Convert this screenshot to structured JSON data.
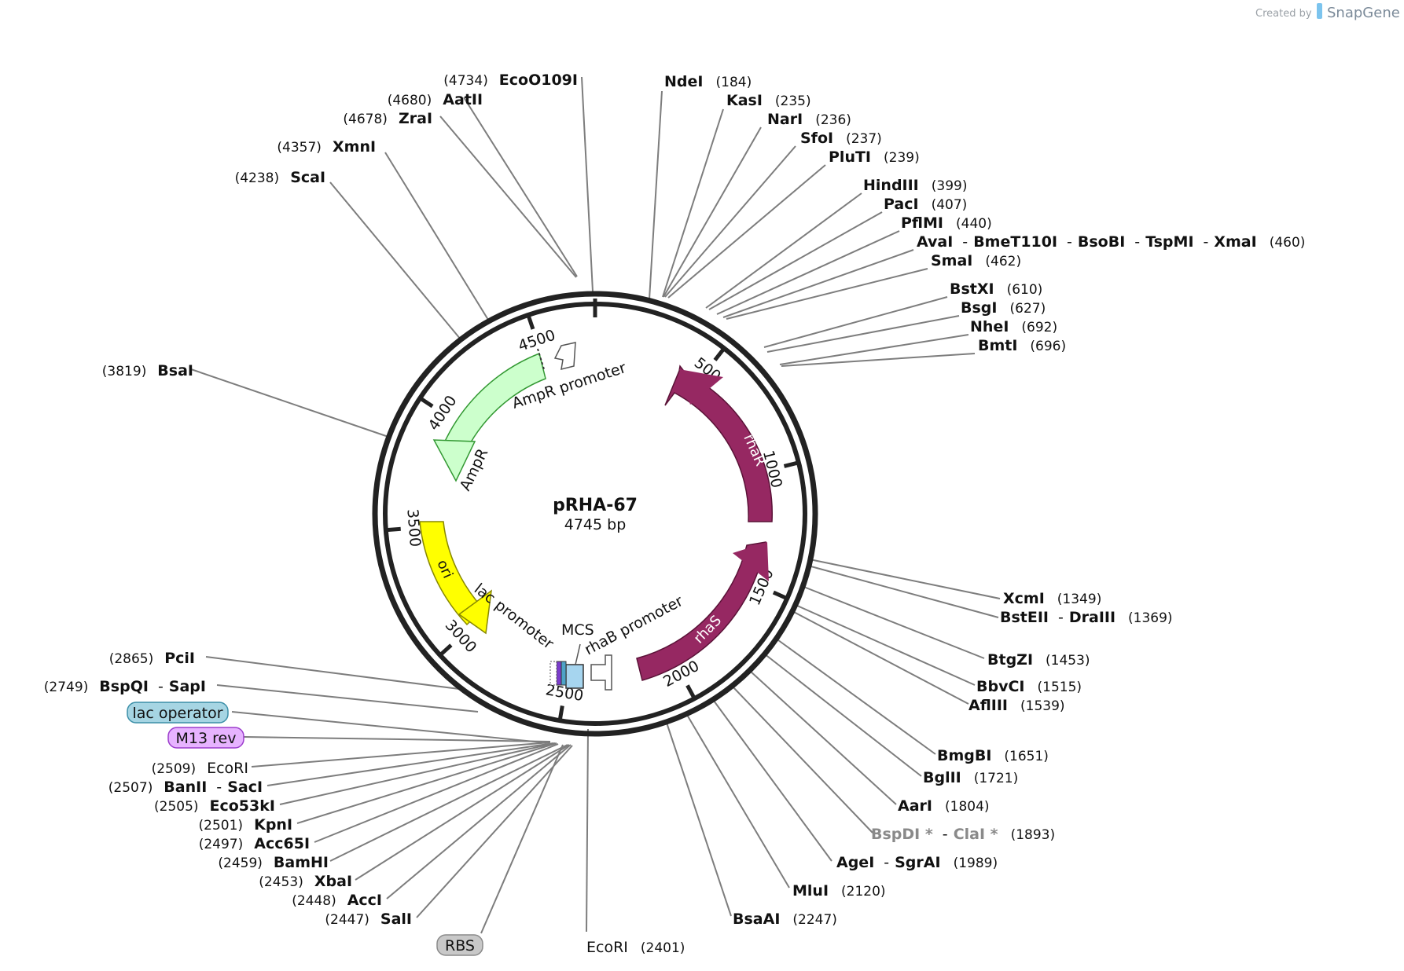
{
  "branding": {
    "created_by": "Created by",
    "app": "SnapGene"
  },
  "plasmid": {
    "name": "pRHA-67",
    "length_label": "4745 bp",
    "length": 4745
  },
  "ticks": [
    {
      "label": "500",
      "bp": 500
    },
    {
      "label": "1000",
      "bp": 1000
    },
    {
      "label": "1500",
      "bp": 1500
    },
    {
      "label": "2000",
      "bp": 2000
    },
    {
      "label": "2500",
      "bp": 2500
    },
    {
      "label": "3000",
      "bp": 3000
    },
    {
      "label": "3500",
      "bp": 3500
    },
    {
      "label": "4000",
      "bp": 4000
    },
    {
      "label": "4500",
      "bp": 4500
    }
  ],
  "features": [
    {
      "name": "rhaR",
      "color": "#962862",
      "direction": "reverse"
    },
    {
      "name": "rhaS",
      "color": "#962862",
      "direction": "reverse"
    },
    {
      "name": "ori",
      "color": "#ffff00",
      "direction": "reverse"
    },
    {
      "name": "AmpR",
      "color": "#ccffcc",
      "direction": "reverse"
    },
    {
      "name": "AmpR promoter",
      "color": "#ffffff",
      "direction": "reverse"
    },
    {
      "name": "rhaB promoter",
      "color": "#ffffff",
      "direction": "forward"
    },
    {
      "name": "lac promoter",
      "color": "#ffffff",
      "direction": "forward"
    },
    {
      "name": "MCS",
      "color": "#ffffff",
      "direction": "none"
    }
  ],
  "tags": [
    {
      "name": "lac operator",
      "fill": "#a6d5e3",
      "stroke": "#3b8fa8"
    },
    {
      "name": "M13 rev",
      "fill": "#e7b3ff",
      "stroke": "#9b3ccc"
    },
    {
      "name": "RBS",
      "fill": "#c8c8c8",
      "stroke": "#8a8a8a"
    }
  ],
  "sites": [
    {
      "parts": [
        {
          "name": "EcoO109I"
        }
      ],
      "pos": "(4734)"
    },
    {
      "parts": [
        {
          "name": "AatII"
        }
      ],
      "pos": "(4680)"
    },
    {
      "parts": [
        {
          "name": "ZraI"
        }
      ],
      "pos": "(4678)"
    },
    {
      "parts": [
        {
          "name": "XmnI"
        }
      ],
      "pos": "(4357)"
    },
    {
      "parts": [
        {
          "name": "ScaI"
        }
      ],
      "pos": "(4238)"
    },
    {
      "parts": [
        {
          "name": "BsaI"
        }
      ],
      "pos": "(3819)"
    },
    {
      "parts": [
        {
          "name": "NdeI"
        }
      ],
      "pos": "(184)"
    },
    {
      "parts": [
        {
          "name": "KasI"
        }
      ],
      "pos": "(235)"
    },
    {
      "parts": [
        {
          "name": "NarI"
        }
      ],
      "pos": "(236)"
    },
    {
      "parts": [
        {
          "name": "SfoI"
        }
      ],
      "pos": "(237)"
    },
    {
      "parts": [
        {
          "name": "PluTI"
        }
      ],
      "pos": "(239)"
    },
    {
      "parts": [
        {
          "name": "HindIII"
        }
      ],
      "pos": "(399)"
    },
    {
      "parts": [
        {
          "name": "PacI"
        }
      ],
      "pos": "(407)"
    },
    {
      "parts": [
        {
          "name": "PflMI"
        }
      ],
      "pos": "(440)"
    },
    {
      "parts": [
        {
          "name": "AvaI"
        },
        {
          "name": "BmeT110I"
        },
        {
          "name": "BsoBI"
        },
        {
          "name": "TspMI"
        },
        {
          "name": "XmaI"
        }
      ],
      "pos": "(460)"
    },
    {
      "parts": [
        {
          "name": "SmaI"
        }
      ],
      "pos": "(462)"
    },
    {
      "parts": [
        {
          "name": "BstXI"
        }
      ],
      "pos": "(610)"
    },
    {
      "parts": [
        {
          "name": "BsgI"
        }
      ],
      "pos": "(627)"
    },
    {
      "parts": [
        {
          "name": "NheI"
        }
      ],
      "pos": "(692)"
    },
    {
      "parts": [
        {
          "name": "BmtI"
        }
      ],
      "pos": "(696)"
    },
    {
      "parts": [
        {
          "name": "XcmI"
        }
      ],
      "pos": "(1349)"
    },
    {
      "parts": [
        {
          "name": "BstEII"
        },
        {
          "name": "DraIII"
        }
      ],
      "pos": "(1369)"
    },
    {
      "parts": [
        {
          "name": "BtgZI"
        }
      ],
      "pos": "(1453)"
    },
    {
      "parts": [
        {
          "name": "BbvCI"
        }
      ],
      "pos": "(1515)"
    },
    {
      "parts": [
        {
          "name": "AflIII"
        }
      ],
      "pos": "(1539)"
    },
    {
      "parts": [
        {
          "name": "BmgBI"
        }
      ],
      "pos": "(1651)"
    },
    {
      "parts": [
        {
          "name": "BglII"
        }
      ],
      "pos": "(1721)"
    },
    {
      "parts": [
        {
          "name": "AarI"
        }
      ],
      "pos": "(1804)"
    },
    {
      "parts": [
        {
          "name": "BspDI *",
          "grey": true
        },
        {
          "name": "ClaI *",
          "grey": true
        }
      ],
      "pos": "(1893)"
    },
    {
      "parts": [
        {
          "name": "AgeI"
        },
        {
          "name": "SgrAI"
        }
      ],
      "pos": "(1989)"
    },
    {
      "parts": [
        {
          "name": "MluI"
        }
      ],
      "pos": "(2120)"
    },
    {
      "parts": [
        {
          "name": "BsaAI"
        }
      ],
      "pos": "(2247)"
    },
    {
      "parts": [
        {
          "name": "EcoRI",
          "plain": true
        }
      ],
      "pos": "(2401)"
    },
    {
      "parts": [
        {
          "name": "PciI"
        }
      ],
      "pos": "(2865)"
    },
    {
      "parts": [
        {
          "name": "BspQI"
        },
        {
          "name": "SapI"
        }
      ],
      "pos": "(2749)"
    },
    {
      "parts": [
        {
          "name": "EcoRI",
          "plain": true
        }
      ],
      "pos": "(2509)"
    },
    {
      "parts": [
        {
          "name": "BanII"
        },
        {
          "name": "SacI"
        }
      ],
      "pos": "(2507)"
    },
    {
      "parts": [
        {
          "name": "Eco53kI"
        }
      ],
      "pos": "(2505)"
    },
    {
      "parts": [
        {
          "name": "KpnI"
        }
      ],
      "pos": "(2501)"
    },
    {
      "parts": [
        {
          "name": "Acc65I"
        }
      ],
      "pos": "(2497)"
    },
    {
      "parts": [
        {
          "name": "BamHI"
        }
      ],
      "pos": "(2459)"
    },
    {
      "parts": [
        {
          "name": "XbaI"
        }
      ],
      "pos": "(2453)"
    },
    {
      "parts": [
        {
          "name": "AccI"
        }
      ],
      "pos": "(2448)"
    },
    {
      "parts": [
        {
          "name": "SalI"
        }
      ],
      "pos": "(2447)"
    }
  ]
}
